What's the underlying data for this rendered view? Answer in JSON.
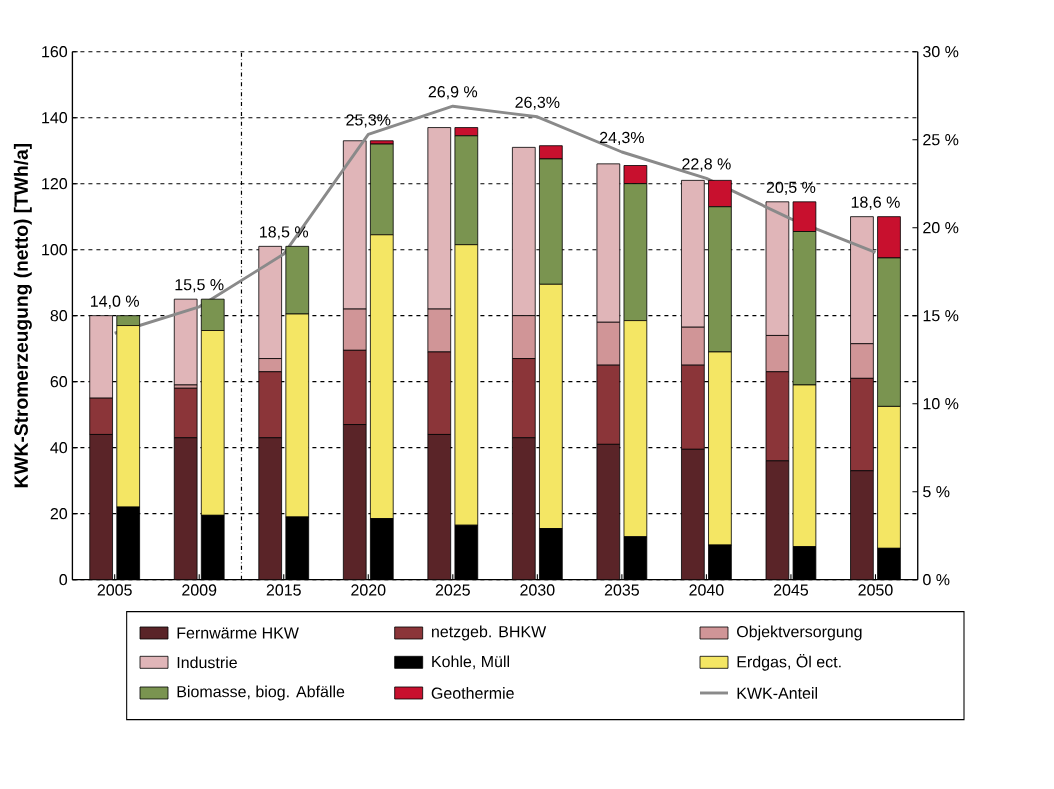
{
  "chart_data": [
    {
      "type": "bar",
      "stacked": true,
      "ylabel": "KWK-Stromerzeugung (netto)  [TWh/a]",
      "categories": [
        "2005",
        "2009",
        "2015",
        "2020",
        "2025",
        "2030",
        "2035",
        "2040",
        "2045",
        "2050"
      ],
      "ylim": [
        0,
        160
      ],
      "yticks": [
        0,
        20,
        40,
        60,
        80,
        100,
        120,
        140,
        160
      ],
      "y2lim": [
        0,
        30
      ],
      "y2ticks": [
        {
          "value": 0,
          "label": "0 %"
        },
        {
          "value": 5,
          "label": "5 %"
        },
        {
          "value": 10,
          "label": "10 %"
        },
        {
          "value": 15,
          "label": "15 %"
        },
        {
          "value": 20,
          "label": "20 %"
        },
        {
          "value": 25,
          "label": "25 %"
        },
        {
          "value": 30,
          "label": "30 %"
        }
      ],
      "grid": "y",
      "legend": "bottom",
      "series": [
        {
          "name": "Fernwärme HKW",
          "color": "#5a2428",
          "values": [
            44,
            43,
            43,
            47,
            44,
            43,
            41,
            39.5,
            36,
            33
          ]
        },
        {
          "name": "netzgeb. BHKW",
          "color": "#8b3539",
          "values": [
            11,
            15,
            20,
            22.5,
            25,
            24,
            24,
            25.5,
            27,
            28
          ]
        },
        {
          "name": "Objektversorgung",
          "color": "#d09597",
          "values": [
            0,
            1,
            4,
            12.5,
            13,
            13,
            13,
            11.5,
            11,
            10.5
          ]
        },
        {
          "name": "Industrie",
          "color": "#e0b5b8",
          "values": [
            25,
            26,
            34,
            51,
            55,
            51,
            48,
            44.5,
            40.5,
            38.5
          ]
        },
        {
          "name": "KWK-Anteil",
          "type": "line",
          "axis": "y2",
          "color": "#8a8a8a",
          "marker": "none",
          "line_style": "solid",
          "values": [
            14.0,
            15.5,
            18.5,
            25.3,
            26.9,
            26.3,
            24.3,
            22.8,
            20.5,
            18.6
          ],
          "value_labels": [
            "14,0 %",
            "15,5 %",
            "18,5 %",
            "25,3%",
            "26,9 %",
            "26,3%",
            "24,3%",
            "22,8 %",
            "20,5 %",
            "18,6 %"
          ]
        }
      ]
    },
    {
      "type": "bar",
      "stacked": true,
      "tick_labels": false,
      "legend": "bottom",
      "categories": [
        "2005",
        "2009",
        "2015",
        "2020",
        "2025",
        "2030",
        "2035",
        "2040",
        "2045",
        "2050"
      ],
      "ylim": [
        0,
        160
      ],
      "yticks": [
        0,
        20,
        40,
        60,
        80,
        100,
        120,
        140,
        160
      ],
      "series": [
        {
          "name": "Kohle, Müll",
          "color": "#000000",
          "values": [
            22,
            19.5,
            19,
            18.5,
            16.5,
            15.5,
            13,
            10.5,
            10,
            9.5
          ]
        },
        {
          "name": "Erdgas, Öl ect.",
          "color": "#f4e664",
          "values": [
            55,
            56,
            61.5,
            86,
            85,
            74,
            65.5,
            58.5,
            49,
            43
          ]
        },
        {
          "name": "Biomasse, biog. Abfälle",
          "color": "#7a9450",
          "values": [
            3,
            9.5,
            20.5,
            27.5,
            33,
            38,
            41.5,
            44,
            46.5,
            45
          ]
        },
        {
          "name": "Geothermie",
          "color": "#c8102e",
          "values": [
            0,
            0,
            0,
            1,
            2.5,
            4,
            5.5,
            8,
            9,
            12.5
          ]
        }
      ]
    }
  ]
}
